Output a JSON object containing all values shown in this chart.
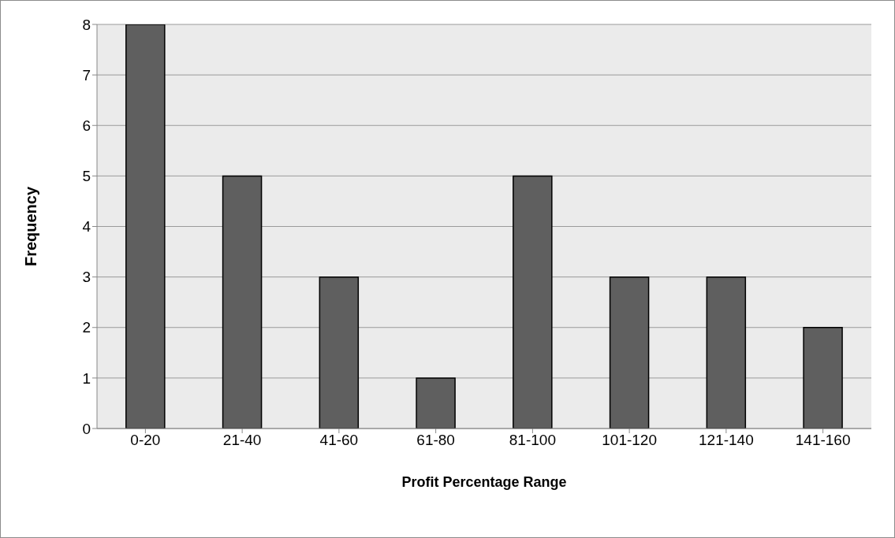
{
  "chart_data": {
    "type": "bar",
    "xlabel": "Profit Percentage Range",
    "ylabel": "Frequency",
    "categories": [
      "0-20",
      "21-40",
      "41-60",
      "61-80",
      "81-100",
      "101-120",
      "121-140",
      "141-160"
    ],
    "values": [
      8,
      5,
      3,
      1,
      5,
      3,
      3,
      2
    ],
    "color": "#5f5f5f",
    "ylim": [
      0,
      8
    ],
    "yticks": [
      0,
      1,
      2,
      3,
      4,
      5,
      6,
      7,
      8
    ],
    "grid": "y",
    "legend": false
  }
}
